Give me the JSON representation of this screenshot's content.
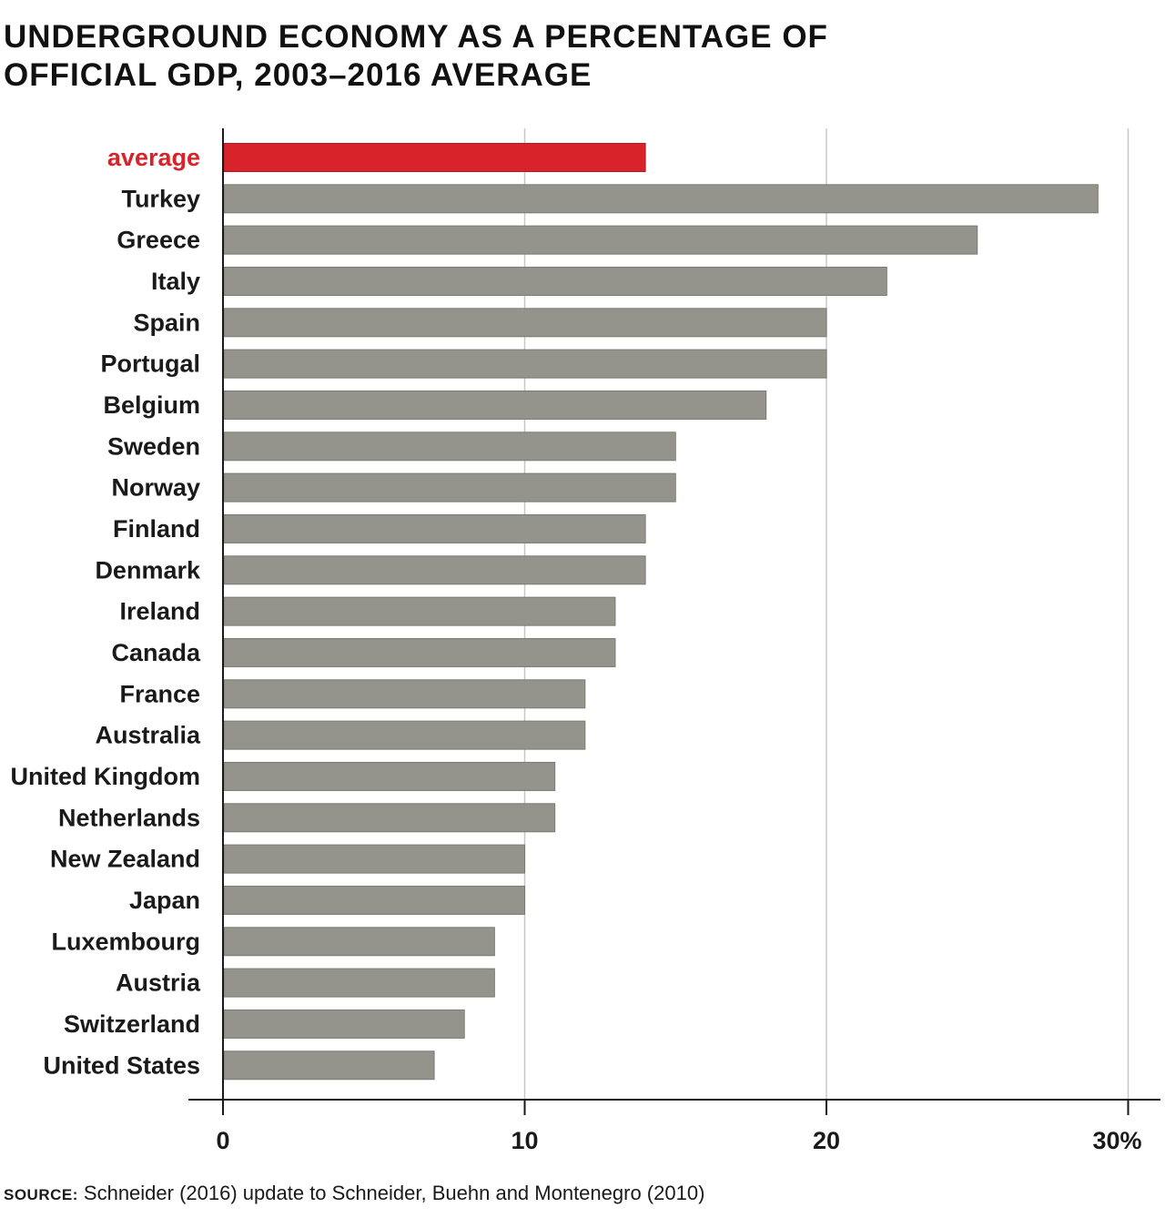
{
  "title_lines": [
    "UNDERGROUND ECONOMY AS A PERCENTAGE OF",
    "OFFICIAL GDP, 2003–2016 AVERAGE"
  ],
  "source": {
    "label": "source:",
    "text": "Schneider (2016) update to Schneider, Buehn and Montenegro (2010)"
  },
  "colors": {
    "highlight": "#d8232a",
    "bar": "#94948c",
    "grid": "#c8c8c8",
    "axis": "#1a1a1a"
  },
  "chart_data": {
    "type": "bar",
    "orientation": "horizontal",
    "title": "UNDERGROUND ECONOMY AS A PERCENTAGE OF OFFICIAL GDP, 2003–2016 AVERAGE",
    "categories": [
      "average",
      "Turkey",
      "Greece",
      "Italy",
      "Spain",
      "Portugal",
      "Belgium",
      "Sweden",
      "Norway",
      "Finland",
      "Denmark",
      "Ireland",
      "Canada",
      "France",
      "Australia",
      "United Kingdom",
      "Netherlands",
      "New Zealand",
      "Japan",
      "Luxembourg",
      "Austria",
      "Switzerland",
      "United States"
    ],
    "values": [
      14,
      29,
      25,
      22,
      20,
      20,
      18,
      15,
      15,
      14,
      14,
      13,
      13,
      12,
      12,
      11,
      11,
      10,
      10,
      9,
      9,
      8,
      7
    ],
    "highlight_category": "average",
    "xlim": [
      0,
      30
    ],
    "x_ticks": [
      0,
      10,
      20,
      30
    ],
    "x_tick_labels": [
      "0",
      "10",
      "20",
      "30%"
    ],
    "grid": true,
    "xlabel": "",
    "ylabel": ""
  }
}
